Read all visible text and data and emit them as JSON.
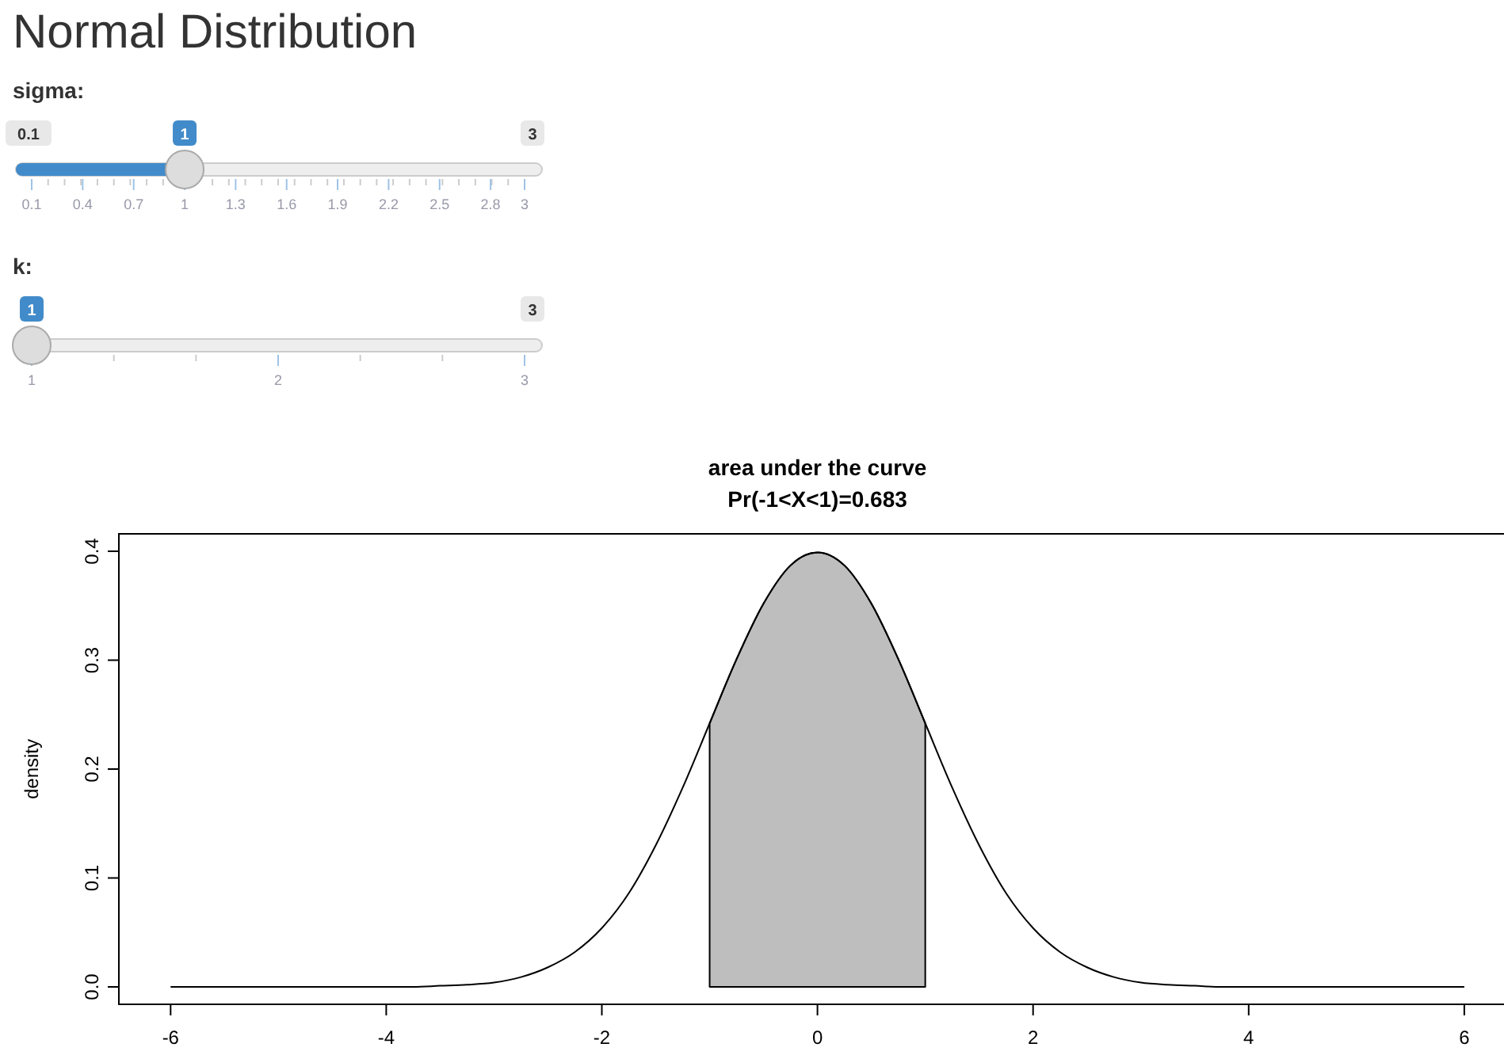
{
  "chart_data": [
    {
      "type": "other",
      "title": "Normal Distribution",
      "annotations": [
        "sigma:",
        "0.1",
        "1",
        "3",
        "0.1",
        "0.4",
        "0.7",
        "1",
        "1.3",
        "1.6",
        "1.9",
        "2.2",
        "2.5",
        "2.8",
        "3",
        "k:",
        "1",
        "3",
        "1",
        "2",
        "3"
      ]
    },
    {
      "type": "line",
      "title": "area under the curve",
      "subtitle": "Pr(-1<X<1)=0.683",
      "ylabel": "density",
      "xlim": [
        -6.48,
        6.48
      ],
      "ylim": [
        -0.016,
        0.416
      ],
      "xticks": [
        -6,
        -4,
        -2,
        0,
        2,
        4,
        6
      ],
      "yticks": [
        {
          "value": 0,
          "label": "0.0"
        },
        0.1,
        0.2,
        0.3,
        0.4
      ],
      "grid": false,
      "marker": "none",
      "line_style": "solid",
      "series": [
        {
          "type": "area",
          "color": "#bebebe",
          "x": [
            -1,
            -0.75,
            -0.5,
            -0.25,
            0,
            0.25,
            0.5,
            0.75,
            1
          ],
          "values": [
            0.242,
            0.301,
            0.352,
            0.387,
            0.399,
            0.387,
            0.352,
            0.301,
            0.242
          ]
        },
        {
          "type": "line",
          "color": "#000000",
          "x": [
            -6,
            -5,
            -4.5,
            -4,
            -3.75,
            -3.5,
            -3.25,
            -3,
            -2.75,
            -2.5,
            -2.25,
            -2,
            -1.75,
            -1.5,
            -1.25,
            -1,
            -0.75,
            -0.5,
            -0.25,
            0,
            0.25,
            0.5,
            0.75,
            1,
            1.25,
            1.5,
            1.75,
            2,
            2.25,
            2.5,
            2.75,
            3,
            3.25,
            3.5,
            3.75,
            4,
            4.5,
            5,
            6
          ],
          "values": [
            0,
            0,
            0,
            0,
            0,
            0.001,
            0.002,
            0.004,
            0.009,
            0.018,
            0.032,
            0.054,
            0.086,
            0.13,
            0.183,
            0.242,
            0.301,
            0.352,
            0.387,
            0.399,
            0.387,
            0.352,
            0.301,
            0.242,
            0.183,
            0.13,
            0.086,
            0.054,
            0.032,
            0.018,
            0.009,
            0.004,
            0.002,
            0.001,
            0,
            0,
            0,
            0,
            0
          ]
        }
      ]
    }
  ]
}
